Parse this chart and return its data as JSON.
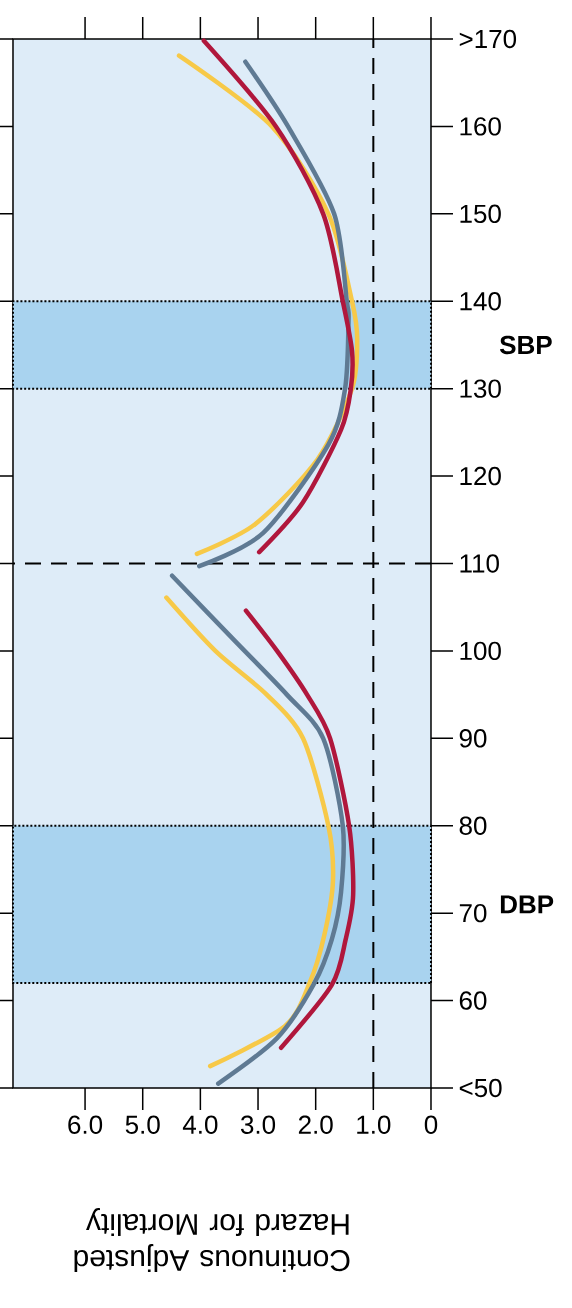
{
  "chart_data": {
    "type": "line",
    "xlabel": "Continuous Adjusted Hazard for Mortality",
    "xlim": [
      7.25,
      0
    ],
    "ylim": [
      50,
      170
    ],
    "yticks": [
      {
        "value": 50,
        "label": "<50"
      },
      60,
      70,
      80,
      90,
      100,
      110,
      120,
      130,
      140,
      150,
      160,
      {
        "value": 170,
        "label": ">170"
      }
    ],
    "xticks": [
      0,
      {
        "value": 1,
        "label": "1.0"
      },
      {
        "value": 2,
        "label": "2.0"
      },
      {
        "value": 3,
        "label": "3.0"
      },
      {
        "value": 4,
        "label": "4.0"
      },
      {
        "value": 5,
        "label": "5.0"
      },
      {
        "value": 6,
        "label": "6.0"
      }
    ],
    "series": [
      {
        "color": "#f7c948",
        "values": [
          52.5,
          57.1,
          62.1,
          67.5,
          73.7,
          80,
          90,
          95,
          100,
          106.1
        ],
        "x": [
          3.83,
          2.53,
          2.1,
          1.85,
          1.7,
          1.78,
          2.22,
          2.85,
          3.74,
          4.59
        ]
      },
      {
        "color": "#5f7a93",
        "values": [
          50.5,
          55.7,
          61.9,
          67,
          72.4,
          80,
          90,
          95,
          101.2,
          108.6
        ],
        "x": [
          3.69,
          2.67,
          2.03,
          1.72,
          1.56,
          1.53,
          1.87,
          2.5,
          3.41,
          4.49
        ]
      },
      {
        "color": "#b0173c",
        "values": [
          54.6,
          61.8,
          67,
          72.1,
          80,
          90,
          95,
          100,
          104.6
        ],
        "x": [
          2.6,
          1.72,
          1.48,
          1.35,
          1.42,
          1.75,
          2.15,
          2.67,
          3.21
        ]
      },
      {
        "color": "#f7c948",
        "values": [
          111.1,
          114.5,
          121.9,
          130,
          135.7,
          140,
          150,
          160,
          168.1
        ],
        "x": [
          4.06,
          3.05,
          1.97,
          1.37,
          1.28,
          1.37,
          1.78,
          2.76,
          4.37
        ]
      },
      {
        "color": "#5f7a93",
        "values": [
          109.7,
          113.5,
          123.6,
          130,
          137.8,
          140,
          150,
          160,
          167.4
        ],
        "x": [
          4.02,
          2.91,
          1.78,
          1.49,
          1.43,
          1.46,
          1.68,
          2.48,
          3.22
        ]
      },
      {
        "color": "#b0173c",
        "values": [
          111.3,
          117,
          125.3,
          130,
          134.3,
          140,
          150,
          160,
          169.8
        ],
        "x": [
          2.98,
          2.22,
          1.56,
          1.39,
          1.37,
          1.53,
          1.87,
          2.69,
          3.94
        ]
      }
    ],
    "ref_lines": [
      {
        "axis": "x",
        "value": 1,
        "line_style": "dashed"
      },
      {
        "axis": "y",
        "value": 110,
        "line_style": "dashed"
      }
    ],
    "bands": [
      {
        "axis": "y",
        "from": 62,
        "to": 80,
        "color": "#a9d3ef"
      },
      {
        "axis": "y",
        "from": 130,
        "to": 140,
        "color": "#a9d3ef"
      }
    ],
    "annotations": [
      "DBP",
      "SBP"
    ]
  }
}
